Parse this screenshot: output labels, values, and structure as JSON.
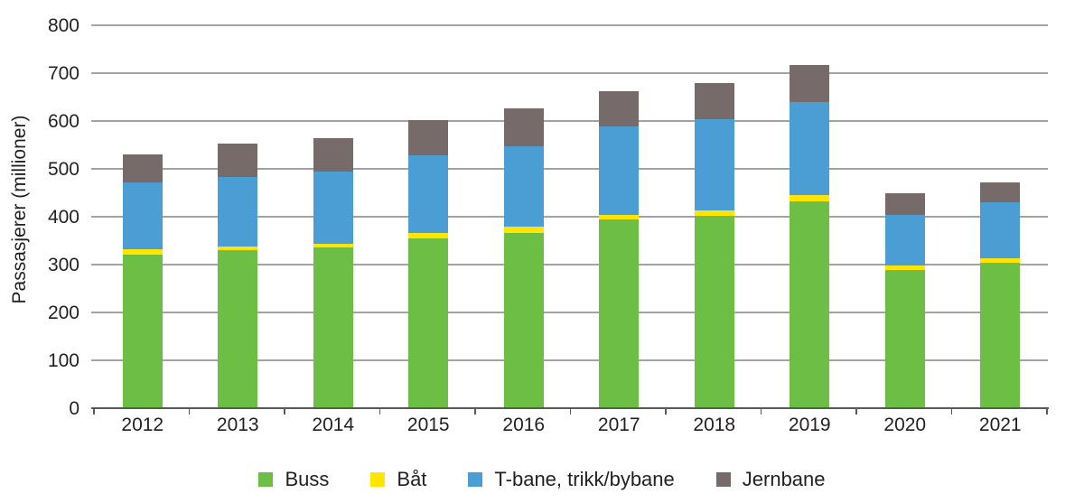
{
  "chart_data": {
    "type": "bar",
    "stacked": true,
    "title": "",
    "xlabel": "",
    "ylabel": "Passasjerer (millioner)",
    "ylim": [
      0,
      800
    ],
    "yticks": [
      0,
      100,
      200,
      300,
      400,
      500,
      600,
      700,
      800
    ],
    "grid": true,
    "legend_position": "bottom",
    "categories": [
      "2012",
      "2013",
      "2014",
      "2015",
      "2016",
      "2017",
      "2018",
      "2019",
      "2020",
      "2021"
    ],
    "series": [
      {
        "name": "Buss",
        "color": "#6cbe45",
        "values": [
          320,
          330,
          336,
          355,
          367,
          395,
          402,
          432,
          288,
          303
        ]
      },
      {
        "name": "Båt",
        "color": "#ffe500",
        "values": [
          12,
          8,
          8,
          11,
          13,
          9,
          11,
          14,
          11,
          10
        ]
      },
      {
        "name": "T-bane, trikk/bybane",
        "color": "#4a9ed3",
        "values": [
          139,
          146,
          151,
          162,
          168,
          185,
          191,
          193,
          105,
          117
        ]
      },
      {
        "name": "Jernbane",
        "color": "#766b68",
        "values": [
          60,
          69,
          69,
          73,
          79,
          74,
          76,
          79,
          46,
          41
        ]
      }
    ],
    "totals": [
      531,
      553,
      564,
      601,
      627,
      663,
      680,
      718,
      450,
      471
    ]
  },
  "colors": {
    "gridline": "#a3a3a3",
    "axis": "#58595b",
    "text": "#231f20",
    "background": "#ffffff"
  }
}
